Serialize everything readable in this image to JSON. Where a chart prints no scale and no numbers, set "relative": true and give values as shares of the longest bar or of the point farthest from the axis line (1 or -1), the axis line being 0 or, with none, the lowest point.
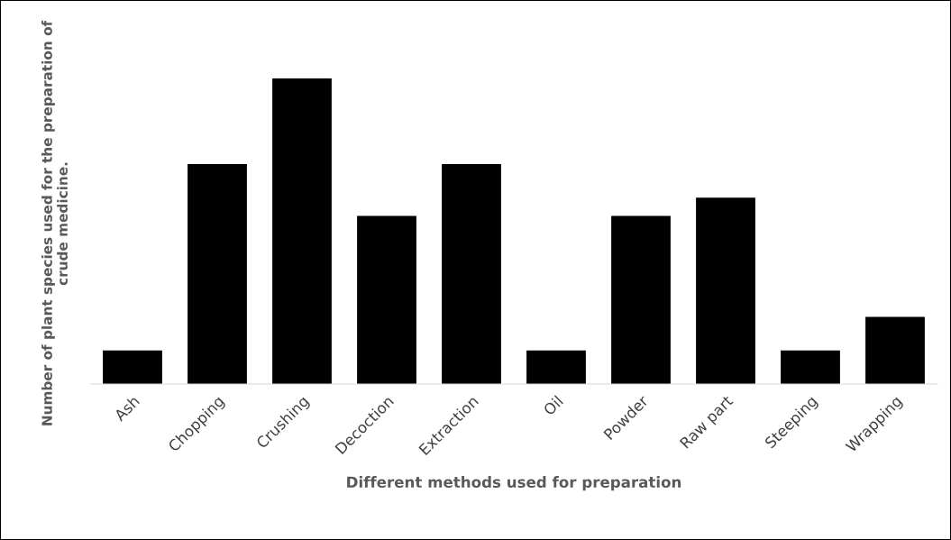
{
  "chart_data": {
    "type": "bar",
    "relative": true,
    "xlabel": "Different methods used for preparation",
    "ylabel": "Number of plant species used for the preparation of crude medicine.",
    "categories": [
      "Ash",
      "Chopping",
      "Crushing",
      "Decoction",
      "Extraction",
      "Oil",
      "Powder",
      "Raw part",
      "Steeping",
      "Wrapping"
    ],
    "values": [
      0.11,
      0.72,
      1,
      0.55,
      0.72,
      0.11,
      0.55,
      0.61,
      0.11,
      0.22
    ],
    "color": "#000000",
    "grid": false,
    "legend": false
  }
}
